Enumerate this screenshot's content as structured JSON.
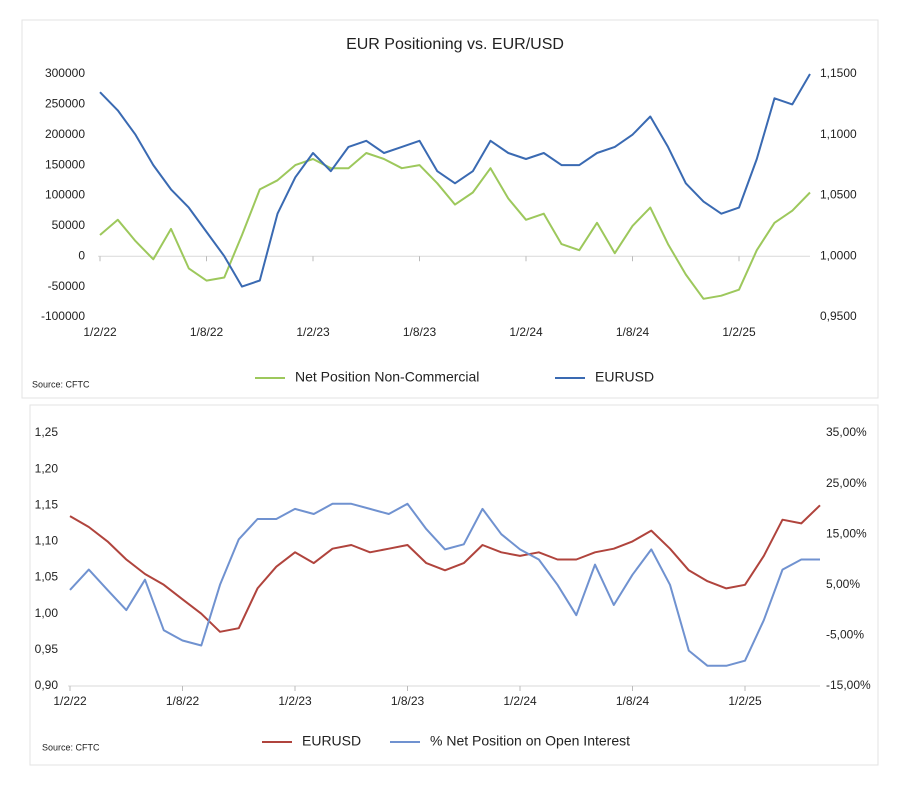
{
  "chart_data": [
    {
      "type": "line",
      "title": "EUR Positioning vs. EUR/USD",
      "source": "Source: CFTC",
      "categories": [
        "1/2/22",
        null,
        null,
        null,
        null,
        null,
        "1/8/22",
        null,
        null,
        null,
        null,
        null,
        "1/2/23",
        null,
        null,
        null,
        null,
        null,
        "1/8/23",
        null,
        null,
        null,
        null,
        null,
        "1/2/24",
        null,
        null,
        null,
        null,
        null,
        "1/8/24",
        null,
        null,
        null,
        null,
        null,
        "1/2/25",
        null,
        null,
        null,
        null
      ],
      "ylim": [
        -100000,
        300000
      ],
      "yticks": [
        -100000,
        -50000,
        0,
        50000,
        100000,
        150000,
        200000,
        250000,
        300000
      ],
      "y2lim": [
        0.95,
        1.15
      ],
      "y2ticks": [
        {
          "value": 0.95,
          "label": "0,9500"
        },
        {
          "value": 1.0,
          "label": "1,0000"
        },
        {
          "value": 1.05,
          "label": "1,0500"
        },
        {
          "value": 1.1,
          "label": "1,1000"
        },
        {
          "value": 1.15,
          "label": "1,1500"
        }
      ],
      "grid": false,
      "legend": "bottom",
      "series": [
        {
          "name": "Net Position Non-Commercial",
          "color": "#9dc85c",
          "values": [
            35000,
            60000,
            25000,
            -5000,
            45000,
            -20000,
            -40000,
            -35000,
            35000,
            110000,
            125000,
            150000,
            160000,
            145000,
            145000,
            170000,
            160000,
            145000,
            150000,
            120000,
            85000,
            105000,
            145000,
            95000,
            60000,
            70000,
            20000,
            10000,
            55000,
            5000,
            50000,
            80000,
            20000,
            -30000,
            -70000,
            -65000,
            -55000,
            10000,
            55000,
            75000,
            105000
          ]
        },
        {
          "name": "EURUSD",
          "color": "#3a6ab2",
          "axis": "y2",
          "values": [
            1.135,
            1.12,
            1.1,
            1.075,
            1.055,
            1.04,
            1.02,
            1.0,
            0.975,
            0.98,
            1.035,
            1.065,
            1.085,
            1.07,
            1.09,
            1.095,
            1.085,
            1.09,
            1.095,
            1.07,
            1.06,
            1.07,
            1.095,
            1.085,
            1.08,
            1.085,
            1.075,
            1.075,
            1.085,
            1.09,
            1.1,
            1.115,
            1.09,
            1.06,
            1.045,
            1.035,
            1.04,
            1.08,
            1.13,
            1.125,
            1.15
          ]
        }
      ]
    },
    {
      "type": "line",
      "source": "Source: CFTC",
      "categories": [
        "1/2/22",
        null,
        null,
        null,
        null,
        null,
        "1/8/22",
        null,
        null,
        null,
        null,
        null,
        "1/2/23",
        null,
        null,
        null,
        null,
        null,
        "1/8/23",
        null,
        null,
        null,
        null,
        null,
        "1/2/24",
        null,
        null,
        null,
        null,
        null,
        "1/8/24",
        null,
        null,
        null,
        null,
        null,
        "1/2/25",
        null,
        null,
        null,
        null
      ],
      "ylim": [
        0.9,
        1.25
      ],
      "yticks": [
        {
          "value": 0.9,
          "label": "0,90"
        },
        {
          "value": 0.95,
          "label": "0,95"
        },
        {
          "value": 1.0,
          "label": "1,00"
        },
        {
          "value": 1.05,
          "label": "1,05"
        },
        {
          "value": 1.1,
          "label": "1,10"
        },
        {
          "value": 1.15,
          "label": "1,15"
        },
        {
          "value": 1.2,
          "label": "1,20"
        },
        {
          "value": 1.25,
          "label": "1,25"
        }
      ],
      "y2lim": [
        -15,
        35
      ],
      "y2ticks": [
        {
          "value": -15,
          "label": "-15,00%"
        },
        {
          "value": -5,
          "label": "-5,00%"
        },
        {
          "value": 5,
          "label": "5,00%"
        },
        {
          "value": 15,
          "label": "15,00%"
        },
        {
          "value": 25,
          "label": "25,00%"
        },
        {
          "value": 35,
          "label": "35,00%"
        }
      ],
      "grid": false,
      "legend": "bottom",
      "series": [
        {
          "name": "EURUSD",
          "color": "#b0443d",
          "values": [
            1.135,
            1.12,
            1.1,
            1.075,
            1.055,
            1.04,
            1.02,
            1.0,
            0.975,
            0.98,
            1.035,
            1.065,
            1.085,
            1.07,
            1.09,
            1.095,
            1.085,
            1.09,
            1.095,
            1.07,
            1.06,
            1.07,
            1.095,
            1.085,
            1.08,
            1.085,
            1.075,
            1.075,
            1.085,
            1.09,
            1.1,
            1.115,
            1.09,
            1.06,
            1.045,
            1.035,
            1.04,
            1.08,
            1.13,
            1.125,
            1.15
          ]
        },
        {
          "name": "% Net Position on Open Interest",
          "color": "#7092d0",
          "axis": "y2",
          "values": [
            4,
            8,
            4,
            0,
            6,
            -4,
            -6,
            -7,
            5,
            14,
            18,
            18,
            20,
            19,
            21,
            21,
            20,
            19,
            21,
            16,
            12,
            13,
            20,
            15,
            12,
            10,
            5,
            -1,
            9,
            1,
            7,
            12,
            5,
            -8,
            -11,
            -11,
            -10,
            -2,
            8,
            10,
            10
          ]
        }
      ]
    }
  ]
}
